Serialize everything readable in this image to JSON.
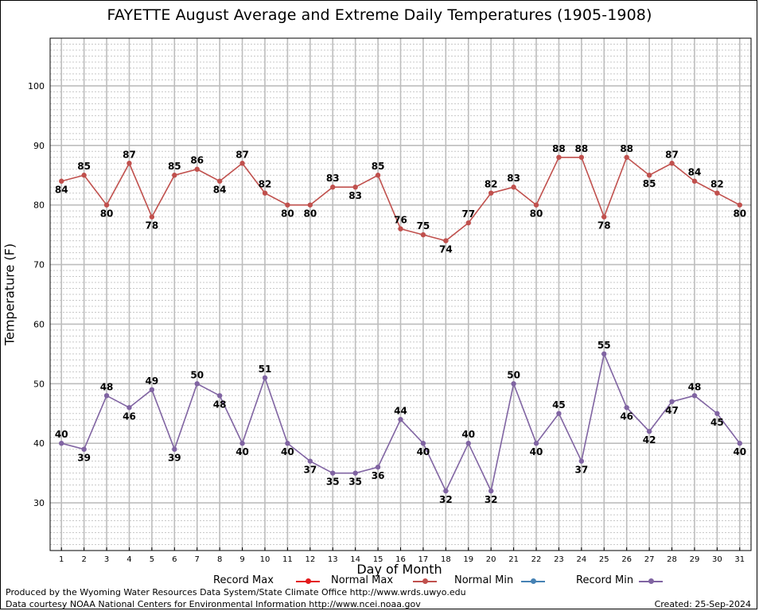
{
  "header": {
    "title": "FAYETTE August Average and Extreme Daily Temperatures (1905-1908)"
  },
  "footer": {
    "credit_line1": "Produced by the Wyoming Water Resources Data System/State Climate Office http://www.wrds.uwyo.edu",
    "credit_line2": "Data courtesy NOAA National Centers for Environmental Information http://www.ncei.noaa.gov",
    "created": "Created: 25-Sep-2024"
  },
  "legend": [
    {
      "name": "Record Max",
      "color": "#e41a1c"
    },
    {
      "name": "Normal Max",
      "color": "#c0504d"
    },
    {
      "name": "Normal Min",
      "color": "#4682b4"
    },
    {
      "name": "Record Min",
      "color": "#8064a2"
    }
  ],
  "chart_data": {
    "type": "line",
    "title": "FAYETTE August Average and Extreme Daily Temperatures (1905-1908)",
    "xlabel": "Day of Month",
    "ylabel": "Temperature (F)",
    "x": [
      1,
      2,
      3,
      4,
      5,
      6,
      7,
      8,
      9,
      10,
      11,
      12,
      13,
      14,
      15,
      16,
      17,
      18,
      19,
      20,
      21,
      22,
      23,
      24,
      25,
      26,
      27,
      28,
      29,
      30,
      31
    ],
    "xlim": [
      0.5,
      31.5
    ],
    "ylim": [
      22,
      108
    ],
    "yticks": [
      30,
      40,
      50,
      60,
      70,
      80,
      90,
      100
    ],
    "grid": true,
    "legend_position": "bottom",
    "series": [
      {
        "name": "Normal Max",
        "color": "#c0504d",
        "values": [
          84,
          85,
          80,
          87,
          78,
          85,
          86,
          84,
          87,
          82,
          80,
          80,
          83,
          83,
          85,
          76,
          75,
          74,
          77,
          82,
          83,
          80,
          88,
          88,
          78,
          88,
          85,
          87,
          84,
          82,
          80
        ]
      },
      {
        "name": "Record Min",
        "color": "#8064a2",
        "values": [
          40,
          39,
          48,
          46,
          49,
          39,
          50,
          48,
          40,
          51,
          40,
          37,
          35,
          35,
          36,
          44,
          40,
          32,
          40,
          32,
          50,
          40,
          45,
          37,
          55,
          46,
          42,
          47,
          48,
          45,
          40
        ]
      }
    ]
  }
}
